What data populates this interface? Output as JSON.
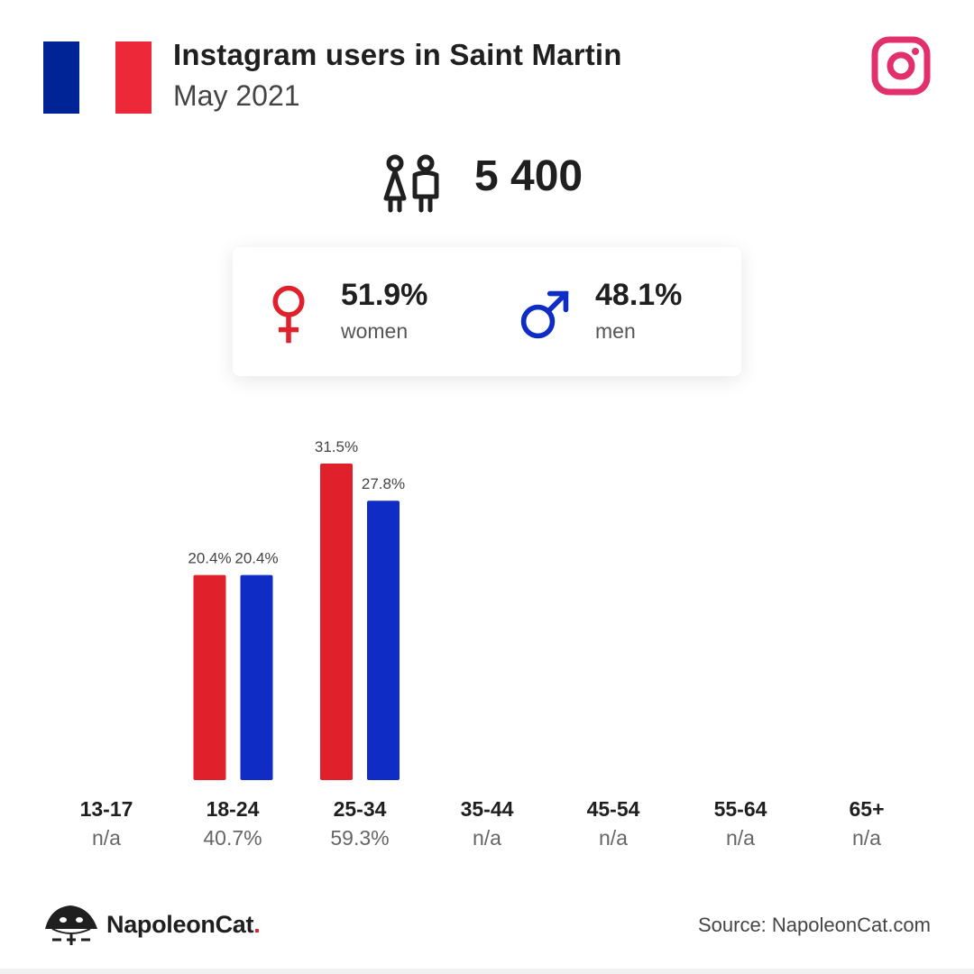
{
  "header": {
    "title": "Instagram users in Saint Martin",
    "subtitle": "May 2021",
    "flag_colors": [
      "#002395",
      "#ffffff",
      "#ed2939"
    ],
    "platform_icon": "instagram-icon",
    "instagram_color": "#e1306c"
  },
  "total": {
    "icon": "people-icon",
    "value": "5 400"
  },
  "gender": {
    "women": {
      "icon": "female-symbol-icon",
      "percent": "51.9%",
      "label": "women",
      "color": "#e0202a"
    },
    "men": {
      "icon": "male-symbol-icon",
      "percent": "48.1%",
      "label": "men",
      "color": "#0f2cc5"
    }
  },
  "chart_data": {
    "type": "bar",
    "categories": [
      "13-17",
      "18-24",
      "25-34",
      "35-44",
      "45-54",
      "55-64",
      "65+"
    ],
    "group_totals": [
      "n/a",
      "40.7%",
      "59.3%",
      "n/a",
      "n/a",
      "n/a",
      "n/a"
    ],
    "series": [
      {
        "name": "women",
        "color": "#e0202a",
        "values": [
          null,
          20.4,
          31.5,
          null,
          null,
          null,
          null
        ],
        "labels": [
          "",
          "20.4%",
          "31.5%",
          "",
          "",
          "",
          ""
        ]
      },
      {
        "name": "men",
        "color": "#0f2cc5",
        "values": [
          null,
          20.4,
          27.8,
          null,
          null,
          null,
          null
        ],
        "labels": [
          "",
          "20.4%",
          "27.8%",
          "",
          "",
          "",
          ""
        ]
      }
    ],
    "ylim": [
      0,
      31.5
    ],
    "grid": false,
    "legend": "none"
  },
  "footer": {
    "brand_name": "NapoleonCat",
    "brand_dot": ".",
    "logo_icon": "napoleoncat-logo-icon",
    "source": "Source: NapoleonCat.com"
  }
}
